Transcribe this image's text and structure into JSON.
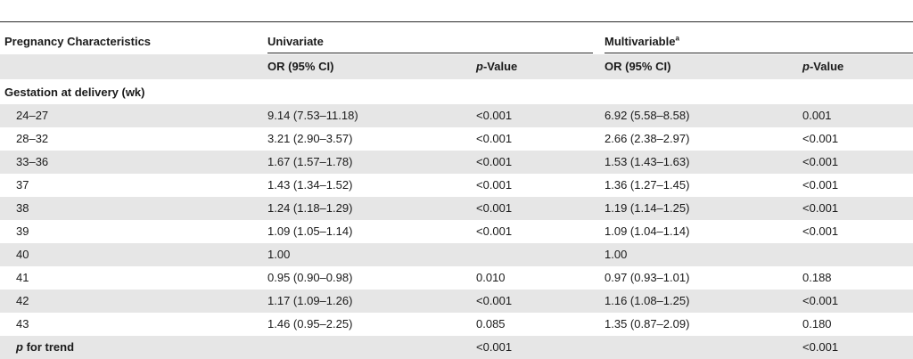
{
  "header": {
    "col0": "Pregnancy Characteristics",
    "univariate": "Univariate",
    "multivariable": "Multivariable",
    "multivariable_sup": "a",
    "or_label": "OR (95% CI)",
    "p_italic": "p",
    "p_rest": "-Value"
  },
  "section": {
    "title": "Gestation at delivery (wk)"
  },
  "rows": [
    {
      "label": "24–27",
      "u_or": "9.14 (7.53–11.18)",
      "u_p": "<0.001",
      "m_or": "6.92 (5.58–8.58)",
      "m_p": "0.001"
    },
    {
      "label": "28–32",
      "u_or": "3.21 (2.90–3.57)",
      "u_p": "<0.001",
      "m_or": "2.66 (2.38–2.97)",
      "m_p": "<0.001"
    },
    {
      "label": "33–36",
      "u_or": "1.67 (1.57–1.78)",
      "u_p": "<0.001",
      "m_or": "1.53 (1.43–1.63)",
      "m_p": "<0.001"
    },
    {
      "label": "37",
      "u_or": "1.43 (1.34–1.52)",
      "u_p": "<0.001",
      "m_or": "1.36 (1.27–1.45)",
      "m_p": "<0.001"
    },
    {
      "label": "38",
      "u_or": "1.24 (1.18–1.29)",
      "u_p": "<0.001",
      "m_or": "1.19 (1.14–1.25)",
      "m_p": "<0.001"
    },
    {
      "label": "39",
      "u_or": "1.09 (1.05–1.14)",
      "u_p": "<0.001",
      "m_or": "1.09 (1.04–1.14)",
      "m_p": "<0.001"
    },
    {
      "label": "40",
      "u_or": "1.00",
      "u_p": "",
      "m_or": "1.00",
      "m_p": ""
    },
    {
      "label": "41",
      "u_or": "0.95 (0.90–0.98)",
      "u_p": "0.010",
      "m_or": "0.97 (0.93–1.01)",
      "m_p": "0.188"
    },
    {
      "label": "42",
      "u_or": "1.17 (1.09–1.26)",
      "u_p": "<0.001",
      "m_or": "1.16 (1.08–1.25)",
      "m_p": "<0.001"
    },
    {
      "label": "43",
      "u_or": "1.46 (0.95–2.25)",
      "u_p": "0.085",
      "m_or": "1.35 (0.87–2.09)",
      "m_p": "0.180"
    }
  ],
  "trend": {
    "label_italic": "p",
    "label_rest": " for trend",
    "u_p": "<0.001",
    "m_p": "<0.001"
  }
}
